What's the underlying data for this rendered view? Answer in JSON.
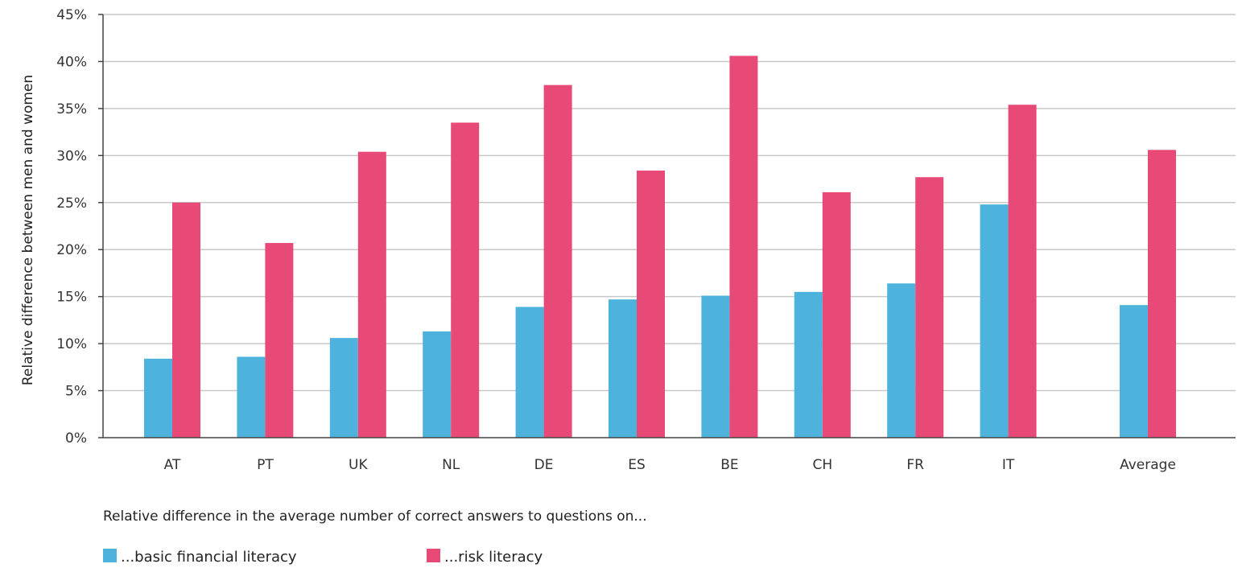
{
  "chart_data": {
    "type": "bar",
    "title": "",
    "xlabel": "Relative difference in the average number of correct answers to questions on...",
    "ylabel": "Relative difference between men and women",
    "ylim": [
      0,
      45
    ],
    "yticks": [
      0,
      5,
      10,
      15,
      20,
      25,
      30,
      35,
      40,
      45
    ],
    "ytick_labels": [
      "0%",
      "5%",
      "10%",
      "15%",
      "20%",
      "25%",
      "30%",
      "35%",
      "40%",
      "45%"
    ],
    "grid": true,
    "legend_position": "bottom-left",
    "categories": [
      "AT",
      "PT",
      "UK",
      "NL",
      "DE",
      "ES",
      "BE",
      "CH",
      "FR",
      "IT",
      "Average"
    ],
    "series": [
      {
        "name": "...basic financial literacy",
        "color": "#4eb3dc",
        "values": [
          8.4,
          8.6,
          10.6,
          11.3,
          13.9,
          14.7,
          15.1,
          15.5,
          16.4,
          24.8,
          14.1
        ]
      },
      {
        "name": "...risk  literacy",
        "color": "#e84a78",
        "values": [
          25.0,
          20.7,
          30.4,
          33.5,
          37.5,
          28.4,
          40.6,
          26.1,
          27.7,
          35.4,
          30.6
        ]
      }
    ]
  }
}
